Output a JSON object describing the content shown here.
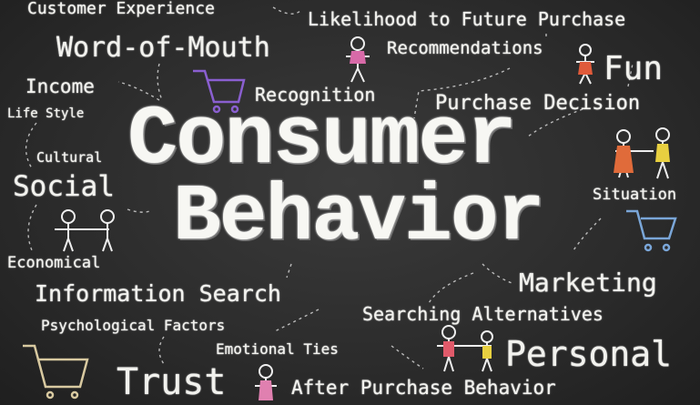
{
  "words": [
    "Customer Experience",
    "Likelihood to Future Purchase",
    "Word-of-Mouth",
    "Recommendations",
    "Fun",
    "Income",
    "Recognition",
    "Purchase Decision",
    "Life Style",
    "Consumer",
    "Cultural",
    "Social",
    "Behavior",
    "Situation",
    "Economical",
    "Marketing",
    "Information Search",
    "Searching Alternatives",
    "Psychological Factors",
    "Emotional Ties",
    "Personal",
    "Trust",
    "After Purchase Behavior"
  ]
}
